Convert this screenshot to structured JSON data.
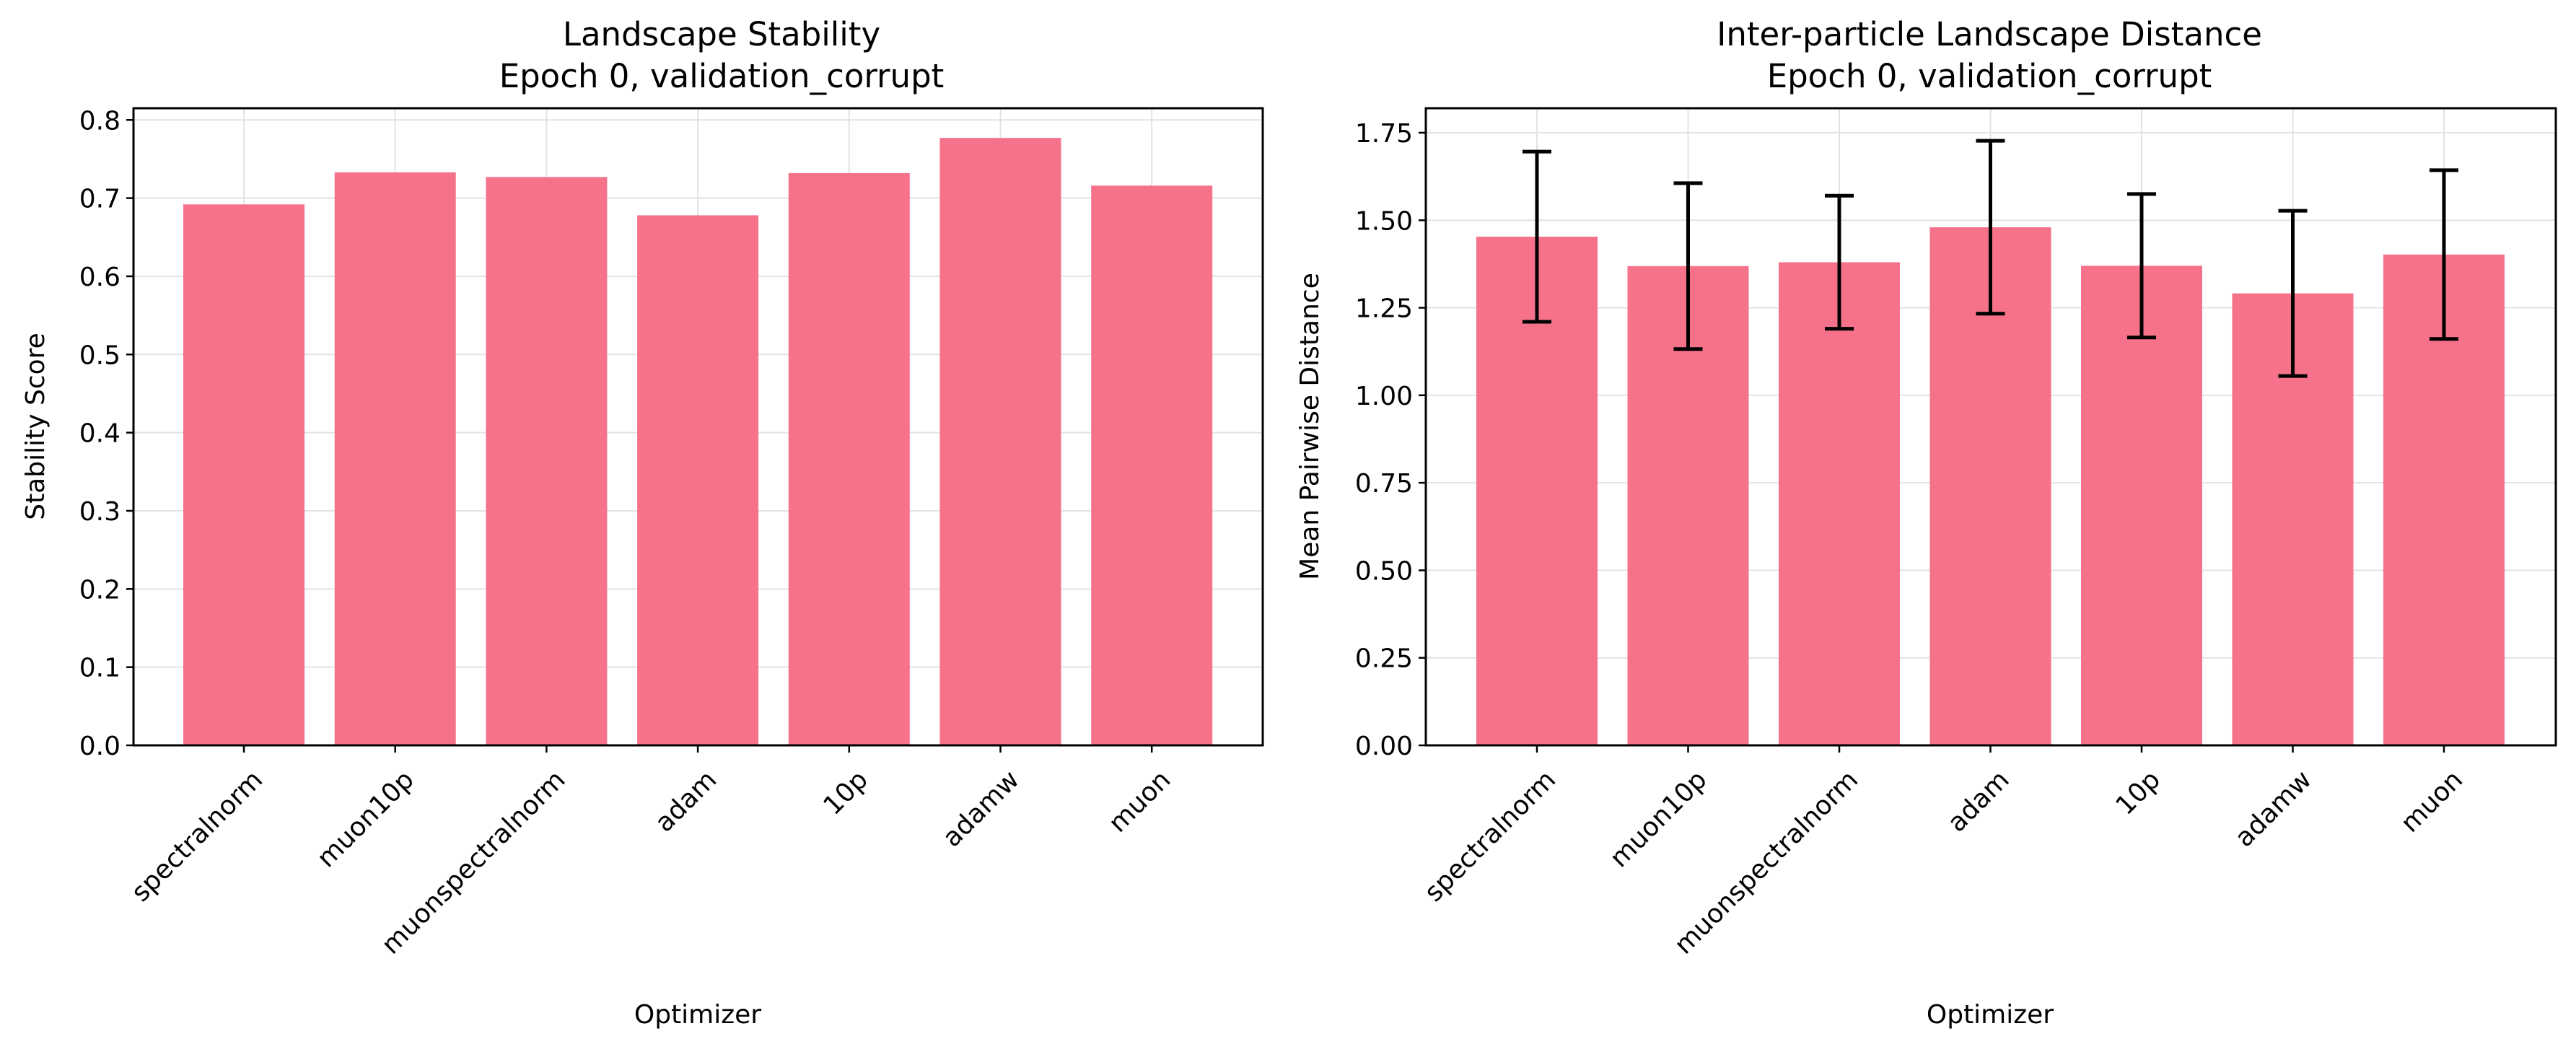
{
  "colors": {
    "bar": "#f5728a",
    "grid": "#e3e3e3",
    "axis": "#000000",
    "errorbar": "#000000"
  },
  "chart_data": [
    {
      "type": "bar",
      "title": "Landscape Stability",
      "subtitle": "Epoch 0, validation_corrupt",
      "xlabel": "Optimizer",
      "ylabel": "Stability Score",
      "categories": [
        "spectralnorm",
        "muon10p",
        "muonspectralnorm",
        "adam",
        "10p",
        "adamw",
        "muon"
      ],
      "values": [
        0.692,
        0.733,
        0.727,
        0.678,
        0.732,
        0.777,
        0.716
      ],
      "ylim": [
        0,
        0.815
      ],
      "yticks": [
        0.0,
        0.1,
        0.2,
        0.3,
        0.4,
        0.5,
        0.6,
        0.7,
        0.8
      ],
      "ytick_labels": [
        "0.0",
        "0.1",
        "0.2",
        "0.3",
        "0.4",
        "0.5",
        "0.6",
        "0.7",
        "0.8"
      ],
      "grid": true
    },
    {
      "type": "bar",
      "title": "Inter-particle Landscape Distance",
      "subtitle": "Epoch 0, validation_corrupt",
      "xlabel": "Optimizer",
      "ylabel": "Mean Pairwise Distance",
      "categories": [
        "spectralnorm",
        "muon10p",
        "muonspectralnorm",
        "adam",
        "10p",
        "adamw",
        "muon"
      ],
      "values": [
        1.453,
        1.369,
        1.38,
        1.48,
        1.37,
        1.291,
        1.402
      ],
      "errors": [
        0.243,
        0.237,
        0.19,
        0.247,
        0.205,
        0.236,
        0.241
      ],
      "ylim": [
        0,
        1.82
      ],
      "yticks": [
        0.0,
        0.25,
        0.5,
        0.75,
        1.0,
        1.25,
        1.5,
        1.75
      ],
      "ytick_labels": [
        "0.00",
        "0.25",
        "0.50",
        "0.75",
        "1.00",
        "1.25",
        "1.50",
        "1.75"
      ],
      "grid": true
    }
  ]
}
